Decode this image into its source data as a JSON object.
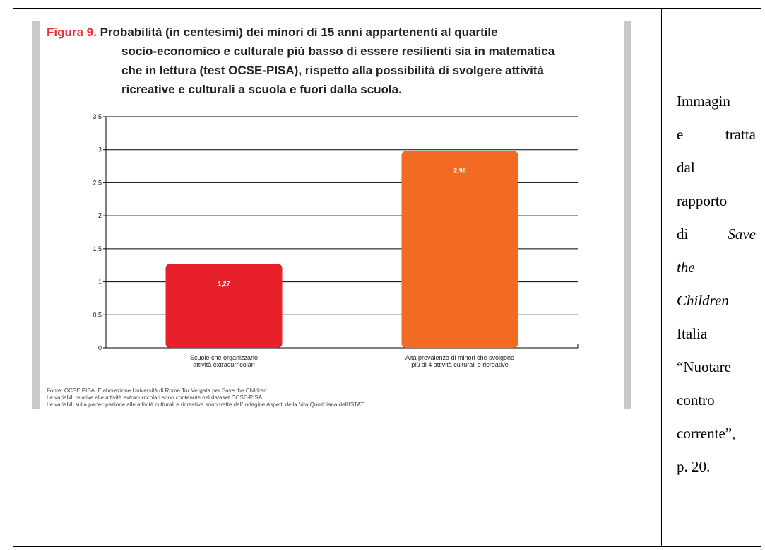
{
  "figure": {
    "label": "Figura 9.",
    "title_line1": "Probabilità (in centesimi) dei minori di 15 anni appartenenti al quartile",
    "title_line2": "socio-economico e culturale più basso di essere resilienti sia in matematica",
    "title_line3": "che in lettura (test OCSE-PISA), rispetto alla possibilità di svolgere attività",
    "title_line4": "ricreative e culturali a scuola e fuori dalla scuola."
  },
  "chart_data": {
    "type": "bar",
    "categories": [
      [
        "Scuole che organizzano",
        "attività extracurricolari"
      ],
      [
        "Alta prevalenza di minori che svolgono",
        "più di 4 attività culturali e ricreative"
      ]
    ],
    "values": [
      1.27,
      2.98
    ],
    "value_labels": [
      "1,27",
      "2,98"
    ],
    "bar_colors": [
      "#e8202a",
      "#f36a23"
    ],
    "yticks": [
      "0",
      "0,5",
      "1",
      "1,5",
      "2",
      "2,5",
      "3",
      "3,5"
    ],
    "ylim": [
      0,
      3.5
    ],
    "grid": true
  },
  "source": {
    "line1": "Fonte: OCSE PISA. Elaborazione Università di Roma Tor Vergata per Save the Children.",
    "line2": "Le variabili relative alle attività extracurricolari sono contenute nel dataset OCSE-PISA.",
    "line3": "Le variabili sulla partecipazione alle attività culturali e ricreative sono tratte dall'Indagine Aspetti della Vita Quotidiana dell'ISTAT."
  },
  "caption": {
    "w1": "Immagin",
    "w2a": "e",
    "w2b": "tratta",
    "w3": "dal",
    "w4": "rapporto",
    "w5a": "di",
    "w5b": "Save",
    "w6": "the",
    "w7": "Children",
    "w8": "Italia",
    "w9": "“Nuotare",
    "w10": "contro",
    "w11": "corrente”,",
    "w12": "p. 20."
  }
}
